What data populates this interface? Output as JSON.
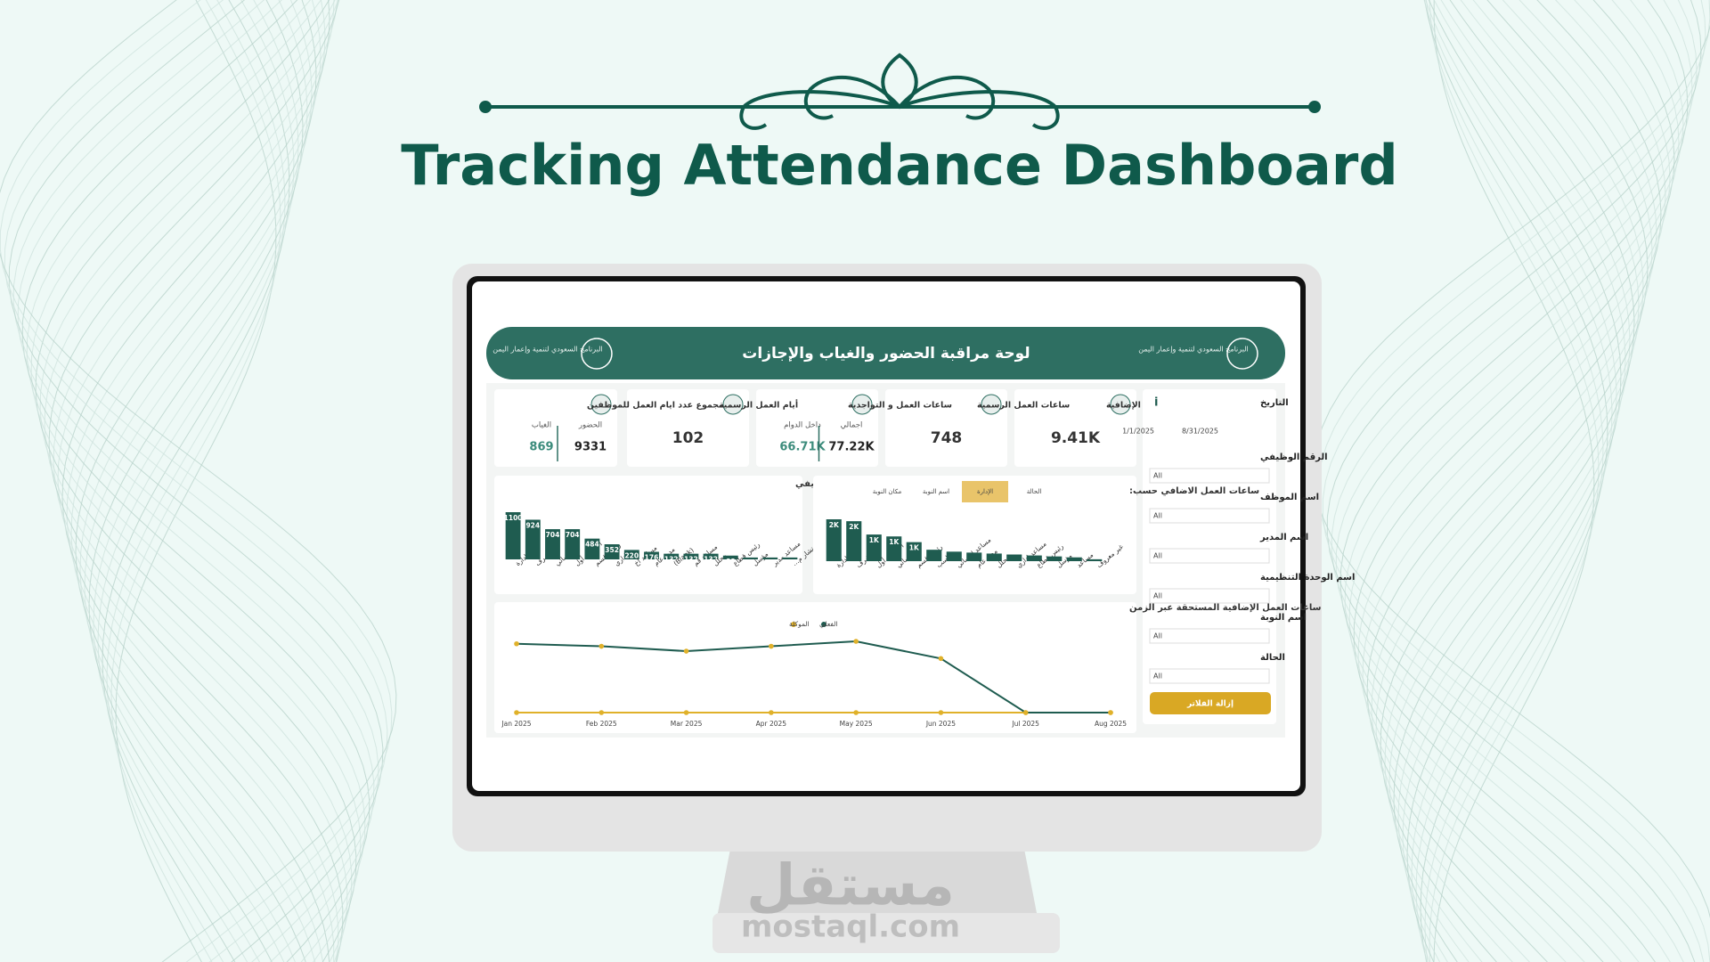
{
  "title": "Tracking Attendance Dashboard",
  "header": {
    "title": "لوحة مراقبة الحضور والغياب والإجازات",
    "logo_text": "البرنامج السعودي لتنمية وإعمار اليمن"
  },
  "kpis": [
    {
      "label": "ساعات العمل الإضافية",
      "value": "9.41K"
    },
    {
      "label": "ساعات العمل الرسمية",
      "value": "748"
    },
    {
      "label": "ساعات العمل و التواجدية",
      "items": [
        {
          "label": "اجمالي",
          "value": "77.22K"
        },
        {
          "label": "داخل الدوام",
          "value": "66.71K"
        }
      ]
    },
    {
      "label": "أيام العمل الرسمية",
      "value": "102"
    },
    {
      "label": "مجموع عدد ايام العمل للموظفين",
      "items": [
        {
          "label": "الحضور",
          "value": "9331"
        },
        {
          "label": "الغياب",
          "value": "869"
        }
      ]
    }
  ],
  "filters": {
    "date": {
      "label": "التاريخ",
      "from": "1/1/2025",
      "to": "8/31/2025"
    },
    "fields": [
      {
        "label": "الرقم الوظيفي",
        "value": "All"
      },
      {
        "label": "اسم الموظف",
        "value": "All"
      },
      {
        "label": "اسم المدير",
        "value": "All"
      },
      {
        "label": "اسم الوحدة التنظيمية",
        "value": "All"
      },
      {
        "label": "اسم النوبة",
        "value": "All"
      },
      {
        "label": "الحالة",
        "value": "All"
      }
    ],
    "button": "إزالة الفلاتر"
  },
  "chart_data": [
    {
      "type": "bar",
      "title": "ساعات العمل الاضافي حسب المسمي الوظيفي",
      "color": "#1f5c50",
      "categories": [
        "مدير ادارة",
        "مشرف",
        "أخصائي",
        "أخصائي أول",
        "رئيس قسم",
        "اداري",
        "مساعد اخ",
        "مدير عام",
        "(Blank)",
        "مساعد قم",
        "محلل",
        "رئيس قطاع",
        "مؤسل",
        "مساعد مدير",
        "مستشار م..."
      ],
      "values": [
        1100,
        924,
        704,
        704,
        484,
        352,
        220,
        176,
        132,
        132,
        132,
        88,
        44,
        44,
        44
      ]
    },
    {
      "type": "bar",
      "title": "ساعات العمل الاضافي حسب:",
      "color": "#1f5c50",
      "tabs": [
        "الحالة",
        "الإدارة",
        "اسم النوبة",
        "مكان النوبة"
      ],
      "selected_tab": 1,
      "categories": [
        "مدير ادارة",
        "مشرف",
        "أخصائي أول",
        "أخصائي",
        "رئيس قسم",
        "محاسب",
        "مساعد اخصائي",
        "مدير عام",
        "محلل",
        "مساعد اداري",
        "رئيس قطاع",
        "مؤسل",
        "مساعد",
        "غير معروف"
      ],
      "values": [
        2200,
        2100,
        1400,
        1300,
        1000,
        600,
        500,
        450,
        400,
        350,
        300,
        250,
        200,
        100
      ],
      "value_labels": [
        "2K",
        "2K",
        "1K",
        "1K",
        "1K",
        null,
        null,
        null,
        null,
        null,
        null,
        null,
        null,
        null
      ]
    },
    {
      "type": "line",
      "title": "ساعات العمل الإضافية المستحقة عبر الزمن",
      "x": [
        "Jan 2025",
        "Feb 2025",
        "Mar 2025",
        "Apr 2025",
        "May 2025",
        "Jun 2025",
        "Jul 2025",
        "Aug 2025"
      ],
      "series": [
        {
          "name": "الفعلي",
          "color": "#1f5c50",
          "values": [
            1400,
            1350,
            1250,
            1350,
            1450,
            1100,
            0,
            0
          ]
        },
        {
          "name": "الموكلة",
          "color": "#e0b12a",
          "values": [
            0,
            0,
            0,
            0,
            0,
            0,
            0,
            0
          ]
        }
      ]
    }
  ],
  "watermark": {
    "arabic": "مستقل",
    "latin": "mostaql.com"
  }
}
